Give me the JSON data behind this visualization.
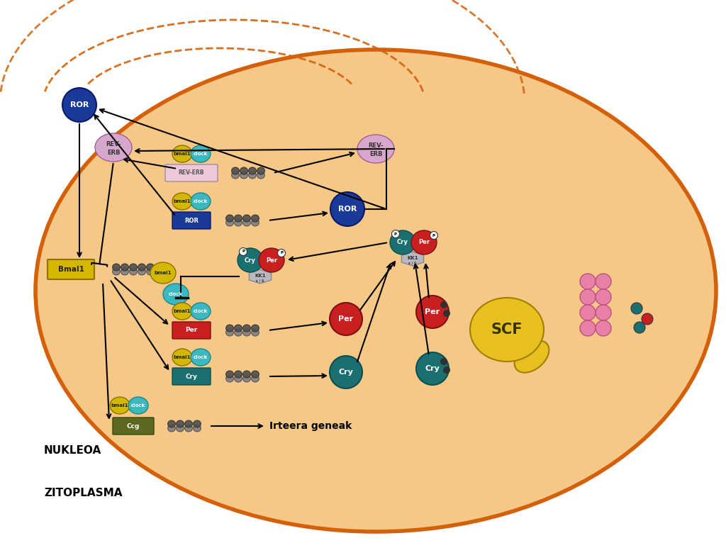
{
  "bg_outer": "#FFFFFF",
  "cell_color": "#F5C888",
  "cell_edge": "#D4600A",
  "colors": {
    "bmal1": "#D4B800",
    "clock": "#3BB8C0",
    "ROR_circle": "#1A3A9A",
    "REV_ERB_circle": "#D8A8CC",
    "Per_box": "#C82020",
    "Cry_box": "#1A7070",
    "Bmal1_box": "#D4B800",
    "ROR_box": "#1A3A9A",
    "REV_ERB_box": "#ECC8D8",
    "Ccg_box": "#5A6820",
    "KK1": "#B8B8C0",
    "SCF": "#E8C020",
    "Per_circle": "#C82020",
    "Cry_circle": "#1A7070",
    "dark_dot": "#303030",
    "pink_proto": "#E880A8",
    "pink_proto_edge": "#C05080"
  },
  "nukleoa": "NUKLEOA",
  "zitoplasma": "ZITOPLASMA",
  "irteera": "Irteera geneak"
}
